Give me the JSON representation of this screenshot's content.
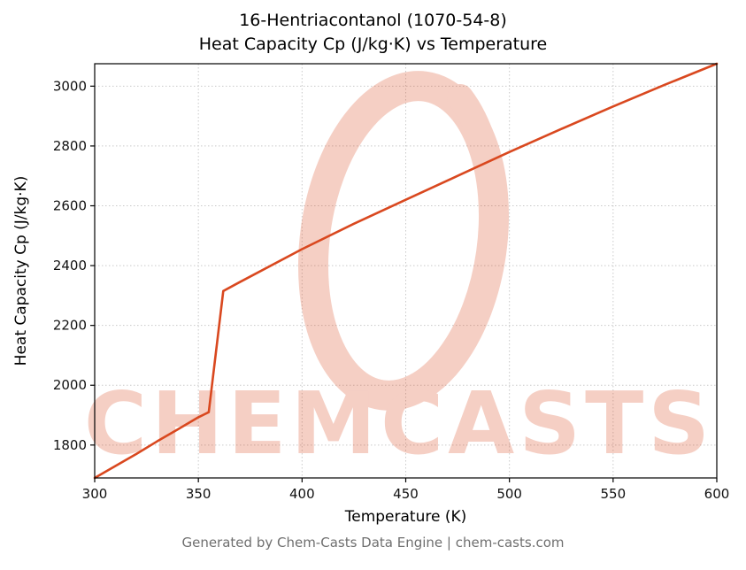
{
  "title": {
    "line1": "16-Hentriacontanol (1070-54-8)",
    "line2": "Heat Capacity Cp (J/kg·K) vs Temperature"
  },
  "watermark": {
    "text": "CHEMCASTS"
  },
  "footer": {
    "text": "Generated by Chem-Casts Data Engine | chem-casts.com"
  },
  "chart_data": {
    "type": "line",
    "title": "16-Hentriacontanol (1070-54-8)\nHeat Capacity Cp (J/kg·K) vs Temperature",
    "xlabel": "Temperature (K)",
    "ylabel": "Heat Capacity Cp (J/kg·K)",
    "xlim": [
      300,
      600
    ],
    "ylim": [
      1690,
      3075
    ],
    "xticks": [
      300,
      350,
      400,
      450,
      500,
      550,
      600
    ],
    "yticks": [
      1800,
      2000,
      2200,
      2400,
      2600,
      2800,
      3000
    ],
    "grid": true,
    "legend": "none",
    "line_color": "#d9481f",
    "watermark_color": "#d9481f",
    "series": [
      {
        "name": "Heat Capacity Cp",
        "x": [
          300,
          310,
          320,
          330,
          340,
          350,
          353,
          355,
          362,
          370,
          400,
          425,
          450,
          475,
          500,
          525,
          550,
          575,
          600
        ],
        "y": [
          1690,
          1730,
          1770,
          1812,
          1852,
          1893,
          1903,
          1910,
          2315,
          2345,
          2455,
          2540,
          2620,
          2700,
          2780,
          2857,
          2932,
          3005,
          3075
        ]
      }
    ]
  }
}
